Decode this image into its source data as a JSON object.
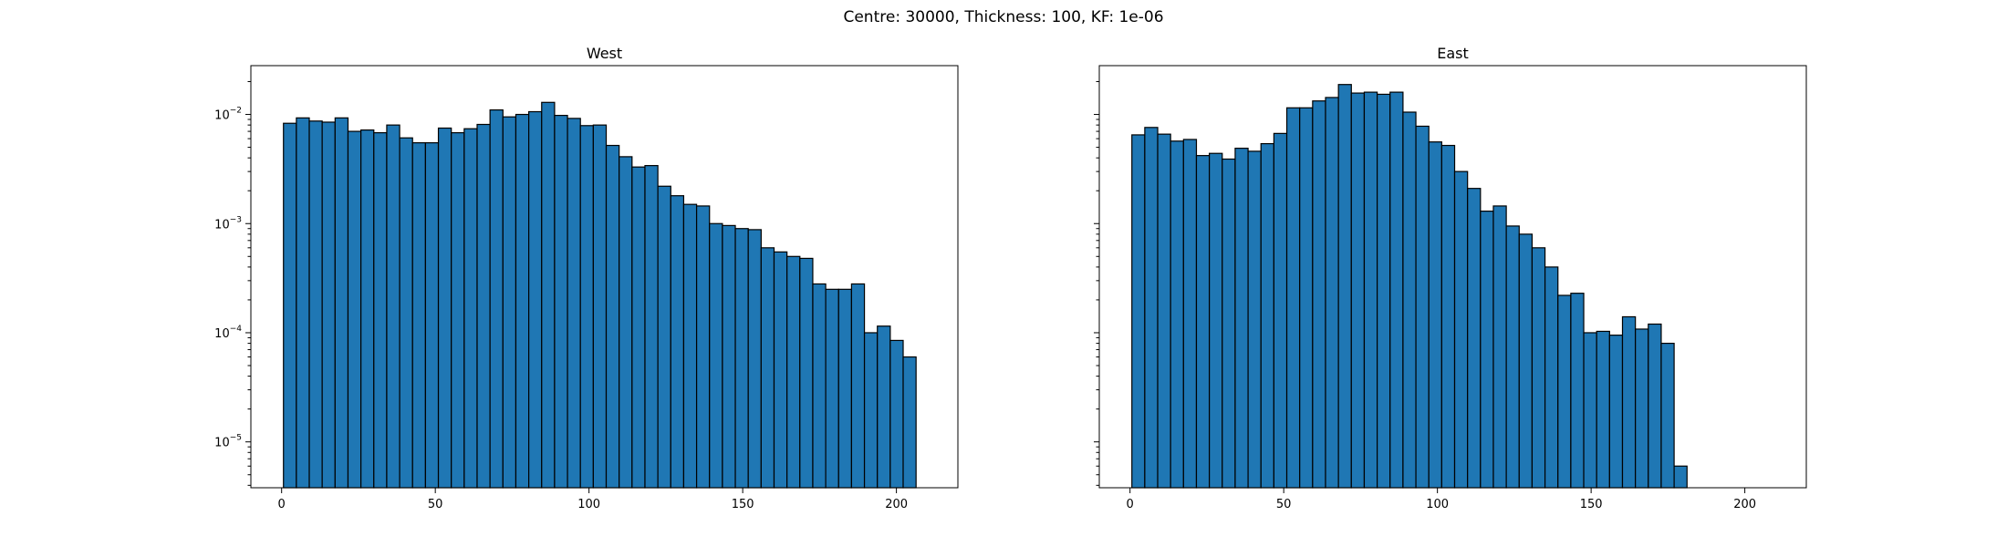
{
  "figure": {
    "suptitle": "Centre: 30000, Thickness: 100, KF: 1e-06",
    "bar_color": "#1f77b4",
    "edge_color": "#000000"
  },
  "chart_data": [
    {
      "type": "bar",
      "title": "West",
      "xlabel": "",
      "ylabel": "",
      "yscale": "log",
      "xlim": [
        -10,
        220
      ],
      "ylim": [
        3.8e-06,
        0.028
      ],
      "xticks": [
        0,
        50,
        100,
        150,
        200
      ],
      "yticks": [
        {
          "value": 1e-05,
          "base": "10",
          "exp": "−5"
        },
        {
          "value": 0.0001,
          "base": "10",
          "exp": "−4"
        },
        {
          "value": 0.001,
          "base": "10",
          "exp": "−3"
        },
        {
          "value": 0.01,
          "base": "10",
          "exp": "−2"
        }
      ],
      "bin_start": 0.6,
      "bin_width": 4.2,
      "values": [
        0.0083,
        0.0093,
        0.0087,
        0.0085,
        0.0093,
        0.007,
        0.0072,
        0.0068,
        0.008,
        0.0061,
        0.0055,
        0.0055,
        0.0075,
        0.0068,
        0.0074,
        0.0081,
        0.011,
        0.0095,
        0.01,
        0.0106,
        0.0129,
        0.0098,
        0.0092,
        0.0079,
        0.008,
        0.0052,
        0.0041,
        0.0033,
        0.0034,
        0.0022,
        0.0018,
        0.0015,
        0.00145,
        0.001,
        0.00096,
        0.0009,
        0.00088,
        0.0006,
        0.00055,
        0.0005,
        0.00048,
        0.00028,
        0.00025,
        0.00025,
        0.00028,
        0.0001,
        0.000115,
        8.5e-05,
        6e-05
      ]
    },
    {
      "type": "bar",
      "title": "East",
      "xlabel": "",
      "ylabel": "",
      "yscale": "log",
      "xlim": [
        -10,
        220
      ],
      "ylim": [
        3.8e-06,
        0.028
      ],
      "xticks": [
        0,
        50,
        100,
        150,
        200
      ],
      "bin_start": 0.6,
      "bin_width": 4.2,
      "values": [
        0.0065,
        0.0076,
        0.0066,
        0.0057,
        0.0059,
        0.0042,
        0.0044,
        0.0039,
        0.0049,
        0.0046,
        0.0054,
        0.0067,
        0.0115,
        0.0115,
        0.0133,
        0.0143,
        0.0188,
        0.0157,
        0.016,
        0.0153,
        0.016,
        0.0105,
        0.0078,
        0.0056,
        0.0052,
        0.003,
        0.0021,
        0.0013,
        0.00145,
        0.00095,
        0.0008,
        0.0006,
        0.0004,
        0.00022,
        0.00023,
        0.0001,
        0.000103,
        9.5e-05,
        0.00014,
        0.000108,
        0.00012,
        8e-05,
        6e-06
      ]
    }
  ]
}
